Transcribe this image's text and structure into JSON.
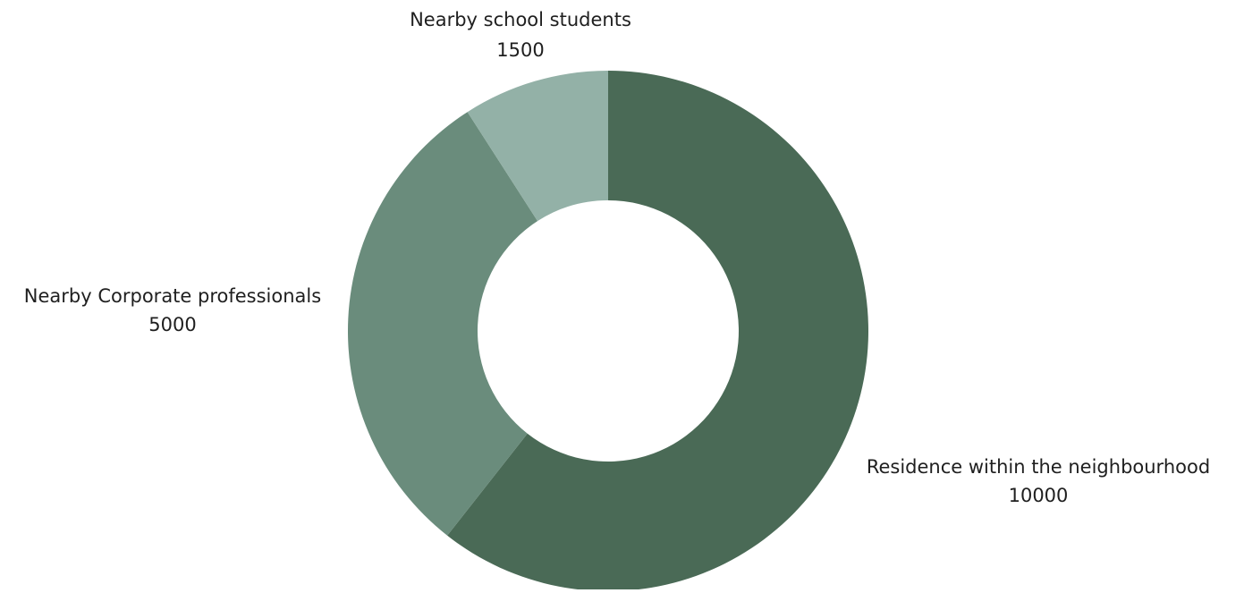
{
  "chart_data": {
    "type": "pie",
    "variant": "donut",
    "title": "",
    "legend": "none",
    "slices": [
      {
        "label": "Residence within the neighbourhood",
        "value": 10000,
        "value_label": "10000",
        "color": "#4a6a56"
      },
      {
        "label": "Nearby Corporate professionals",
        "value": 5000,
        "value_label": "5000",
        "color": "#6a8c7c"
      },
      {
        "label": "Nearby school students",
        "value": 1500,
        "value_label": "1500",
        "color": "#93b1a7"
      }
    ]
  }
}
